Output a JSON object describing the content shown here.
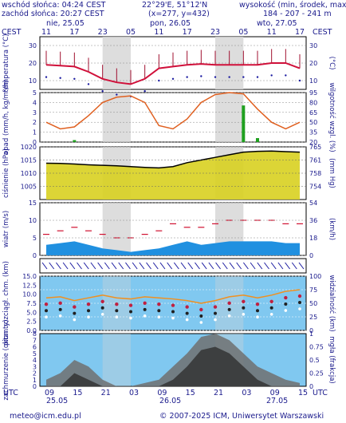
{
  "header": {
    "sunrise": "wschód słońca: 04:24 CEST",
    "sunset": "zachód słońca: 20:27 CEST",
    "coords": "22°29'E, 51°12'N",
    "grid": "(x=277, y=432)",
    "elev_title": "wysokość (min, środek, max)",
    "elev_values": "184 - 207 - 241 m"
  },
  "timezone": "CEST",
  "days": [
    {
      "label": "nie, 25.05"
    },
    {
      "label": "pon, 26.05"
    },
    {
      "label": "wto, 27.05"
    }
  ],
  "top_hours": [
    "11",
    "17",
    "23",
    "05",
    "11",
    "17",
    "23",
    "05",
    "11",
    "17"
  ],
  "bottom_hours": [
    "09",
    "15",
    "21",
    "03",
    "09",
    "15",
    "21",
    "03",
    "09",
    "15"
  ],
  "bottom_days": [
    "25.05",
    "26.05",
    "27.05"
  ],
  "utc_label": "UTC",
  "footer": {
    "email": "meteo@icm.edu.pl",
    "copyright": "© 2007-2025 ICM, Uniwersytet Warszawski"
  },
  "colors": {
    "temp_line": "#d0103a",
    "dew_line": "#1a1aa0",
    "rh_line": "#e06020",
    "pressure_line": "#000000",
    "precip_bar": "#20a020",
    "wind_fill": "#2090e0",
    "night_band": "#d4d4d4"
  },
  "chart_data": [
    {
      "type": "line",
      "panel": "temperature",
      "ylabel_left": "temperatura (°C)",
      "ylabel_right": "(°C)",
      "ylim": [
        5,
        35
      ],
      "yticks": [
        10,
        20,
        30
      ],
      "x": [
        "11",
        "14",
        "17",
        "20",
        "23",
        "02",
        "05",
        "08",
        "11",
        "14",
        "17",
        "20",
        "23",
        "02",
        "05",
        "08",
        "11",
        "14",
        "17"
      ],
      "series": [
        {
          "values": [
            19,
            18.5,
            18,
            15,
            11,
            9,
            8,
            11,
            17,
            18,
            19,
            19.5,
            19,
            19,
            19,
            19,
            20,
            20,
            17
          ]
        }
      ]
    },
    {
      "type": "line",
      "panel": "precipitation_humidity",
      "ylabel_left": "opad (mm/h, kg/m²/h)",
      "ylabel_right": "wilgotność wzgl. (%)",
      "ylim_left": [
        0,
        5
      ],
      "ylim_right": [
        20,
        95
      ],
      "yticks_left": [
        0,
        1,
        2,
        3,
        4,
        5
      ],
      "yticks_right": [
        20,
        35,
        50,
        65,
        80,
        95
      ],
      "x": [
        "11",
        "14",
        "17",
        "20",
        "23",
        "02",
        "05",
        "08",
        "11",
        "14",
        "17",
        "20",
        "23",
        "02",
        "05",
        "08",
        "11",
        "14",
        "17"
      ],
      "series": [
        {
          "values": [
            50,
            40,
            43,
            60,
            80,
            88,
            90,
            80,
            45,
            40,
            55,
            80,
            92,
            95,
            93,
            70,
            50,
            40,
            50
          ]
        }
      ],
      "precip": [
        0,
        0,
        0.2,
        0,
        0,
        0,
        0,
        0,
        0,
        0,
        0,
        0,
        0,
        0,
        3.7,
        0.4,
        0,
        0,
        0
      ]
    },
    {
      "type": "area",
      "panel": "pressure",
      "ylabel_left": "ciśnienie (hPa)",
      "ylabel_right": "(mm Hg)",
      "ylim": [
        1000,
        1020
      ],
      "yticks_left": [
        1005,
        1010,
        1015,
        1020
      ],
      "yticks_right": [
        754,
        758,
        761,
        765
      ],
      "x": [
        "11",
        "14",
        "17",
        "20",
        "23",
        "02",
        "05",
        "08",
        "11",
        "14",
        "17",
        "20",
        "23",
        "02",
        "05",
        "08",
        "11",
        "14",
        "17"
      ],
      "series": [
        {
          "values": [
            1013.8,
            1013.7,
            1013.5,
            1013.2,
            1013,
            1012.8,
            1012.5,
            1012.2,
            1012,
            1012.5,
            1014,
            1015,
            1016,
            1017,
            1018,
            1018.3,
            1018.4,
            1018.2,
            1018
          ]
        }
      ]
    },
    {
      "type": "line",
      "panel": "wind",
      "ylabel_left": "wiatr (m/s)",
      "ylabel_right": "(km/h)",
      "ylim": [
        0,
        15
      ],
      "yticks_left": [
        0,
        5,
        10,
        15
      ],
      "yticks_right": [
        0,
        18,
        36,
        54
      ],
      "x": [
        "11",
        "14",
        "17",
        "20",
        "23",
        "02",
        "05",
        "08",
        "11",
        "14",
        "17",
        "20",
        "23",
        "02",
        "05",
        "08",
        "11",
        "14",
        "17"
      ],
      "series": [
        {
          "values": [
            3,
            3.5,
            4,
            3,
            2,
            1.5,
            1,
            1.5,
            2,
            3,
            4,
            3,
            3.5,
            4,
            4,
            4,
            4,
            3.5,
            3.5
          ]
        },
        {
          "values": [
            6,
            7,
            8,
            7,
            6,
            5,
            5,
            6,
            7,
            9,
            8,
            8,
            9,
            10,
            10,
            10,
            10,
            9,
            9
          ]
        }
      ]
    },
    {
      "type": "scatter",
      "panel": "visibility",
      "ylabel_left": "pion. rozciągł. chm. (km)",
      "ylabel_right": "widzialność (km)",
      "yticks_left": [
        0,
        2.5,
        5,
        7.5,
        10,
        12.5,
        15
      ],
      "yticks_right": [
        0,
        25,
        50,
        75,
        100
      ],
      "x": [
        "11",
        "14",
        "17",
        "20",
        "23",
        "02",
        "05",
        "08",
        "11",
        "14",
        "17",
        "20",
        "23",
        "02",
        "05",
        "08",
        "11",
        "14",
        "17"
      ],
      "series": [
        {
          "values": [
            60,
            62,
            55,
            60,
            65,
            60,
            58,
            62,
            60,
            58,
            55,
            50,
            55,
            62,
            65,
            60,
            65,
            72,
            75
          ]
        }
      ]
    },
    {
      "type": "area",
      "panel": "cloud_cover",
      "ylabel_left": "zachmurzenie (oktanty)",
      "ylabel_right": "mgła (frakcja)",
      "yticks_left": [
        0,
        1,
        2,
        3,
        4,
        5,
        6,
        7,
        8
      ],
      "yticks_right": [
        0,
        0.25,
        0.5,
        0.75,
        1
      ],
      "x": [
        "11",
        "14",
        "17",
        "20",
        "23",
        "02",
        "05",
        "08",
        "11",
        "14",
        "17",
        "20",
        "23",
        "02",
        "05",
        "08",
        "11",
        "14",
        "17"
      ],
      "series": [
        {
          "values": [
            1,
            2,
            4,
            3,
            1,
            0,
            0,
            0.5,
            1,
            3,
            5,
            7.5,
            8,
            7,
            5,
            3,
            2,
            1,
            0.5
          ]
        }
      ]
    }
  ]
}
